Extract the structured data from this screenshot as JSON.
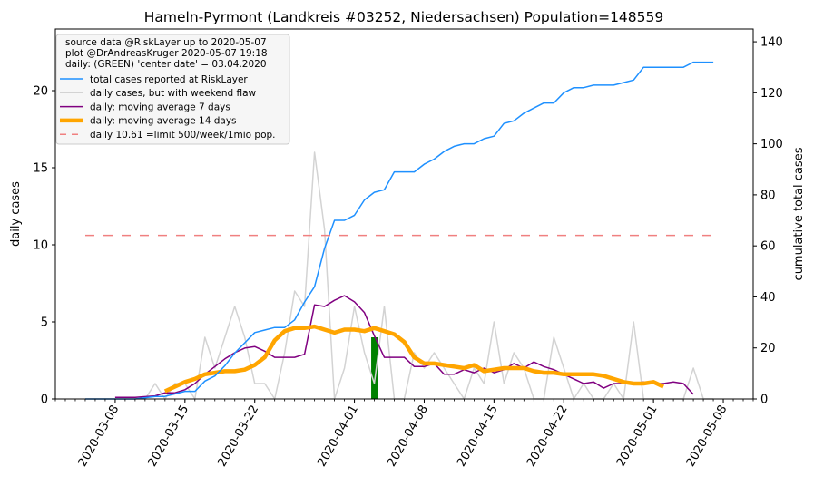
{
  "chart_data": {
    "type": "line",
    "title": "Hameln-Pyrmont (Landkreis #03252, Niedersachsen) Population=148559",
    "ylabel_left": "daily cases",
    "ylabel_right": "cumulative total cases",
    "ylabel_left_color": "#800080",
    "ylabel_right_color": "#1e90ff",
    "ylim_left": [
      0,
      24
    ],
    "ylim_right": [
      0,
      145
    ],
    "yticks_left": [
      0,
      5,
      10,
      15,
      20
    ],
    "yticks_right": [
      0,
      20,
      40,
      60,
      80,
      100,
      120,
      140
    ],
    "xlim": [
      "2020-03-02",
      "2020-05-11"
    ],
    "xticks": [
      "2020-03-08",
      "2020-03-15",
      "2020-03-22",
      "2020-04-01",
      "2020-04-08",
      "2020-04-15",
      "2020-04-22",
      "2020-05-01",
      "2020-05-08"
    ],
    "legend": {
      "placement": "top-left",
      "header": [
        "source data @RiskLayer up to 2020-05-07",
        "plot @DrAndreasKruger 2020-05-07 19:18",
        "daily: (GREEN) 'center date' = 03.04.2020"
      ]
    },
    "center_date": {
      "x": "2020-04-03",
      "value": 4,
      "color": "#008000"
    },
    "series": [
      {
        "name": "total cases reported at RiskLayer",
        "axis": "right",
        "color": "#1e90ff",
        "width": 1.5,
        "style": "solid",
        "x": [
          "2020-03-05",
          "2020-03-08",
          "2020-03-10",
          "2020-03-12",
          "2020-03-13",
          "2020-03-14",
          "2020-03-15",
          "2020-03-16",
          "2020-03-17",
          "2020-03-18",
          "2020-03-19",
          "2020-03-20",
          "2020-03-21",
          "2020-03-22",
          "2020-03-23",
          "2020-03-24",
          "2020-03-25",
          "2020-03-26",
          "2020-03-27",
          "2020-03-28",
          "2020-03-29",
          "2020-03-30",
          "2020-03-31",
          "2020-04-01",
          "2020-04-02",
          "2020-04-03",
          "2020-04-04",
          "2020-04-05",
          "2020-04-06",
          "2020-04-07",
          "2020-04-08",
          "2020-04-09",
          "2020-04-10",
          "2020-04-11",
          "2020-04-12",
          "2020-04-13",
          "2020-04-14",
          "2020-04-15",
          "2020-04-16",
          "2020-04-17",
          "2020-04-18",
          "2020-04-19",
          "2020-04-20",
          "2020-04-21",
          "2020-04-22",
          "2020-04-23",
          "2020-04-24",
          "2020-04-25",
          "2020-04-26",
          "2020-04-27",
          "2020-04-28",
          "2020-04-29",
          "2020-04-30",
          "2020-05-01",
          "2020-05-02",
          "2020-05-03",
          "2020-05-04",
          "2020-05-05",
          "2020-05-06",
          "2020-05-07"
        ],
        "values": [
          0,
          0,
          0,
          1,
          1,
          2,
          3,
          3,
          7,
          9,
          13,
          18,
          22,
          26,
          27,
          28,
          28,
          31,
          38,
          44,
          59,
          70,
          70,
          72,
          78,
          81,
          82,
          89,
          89,
          89,
          92,
          94,
          97,
          99,
          100,
          100,
          102,
          103,
          108,
          109,
          112,
          114,
          116,
          116,
          120,
          122,
          122,
          123,
          123,
          123,
          124,
          125,
          130,
          130,
          130,
          130,
          130,
          132,
          132,
          132
        ]
      },
      {
        "name": "daily cases, but with weekend flaw",
        "axis": "left",
        "color": "#d3d3d3",
        "width": 1.5,
        "style": "solid",
        "x": [
          "2020-03-05",
          "2020-03-06",
          "2020-03-07",
          "2020-03-08",
          "2020-03-09",
          "2020-03-10",
          "2020-03-11",
          "2020-03-12",
          "2020-03-13",
          "2020-03-14",
          "2020-03-15",
          "2020-03-16",
          "2020-03-17",
          "2020-03-18",
          "2020-03-19",
          "2020-03-20",
          "2020-03-21",
          "2020-03-22",
          "2020-03-23",
          "2020-03-24",
          "2020-03-25",
          "2020-03-26",
          "2020-03-27",
          "2020-03-28",
          "2020-03-29",
          "2020-03-30",
          "2020-03-31",
          "2020-04-01",
          "2020-04-02",
          "2020-04-03",
          "2020-04-04",
          "2020-04-05",
          "2020-04-06",
          "2020-04-07",
          "2020-04-08",
          "2020-04-09",
          "2020-04-10",
          "2020-04-11",
          "2020-04-12",
          "2020-04-13",
          "2020-04-14",
          "2020-04-15",
          "2020-04-16",
          "2020-04-17",
          "2020-04-18",
          "2020-04-19",
          "2020-04-20",
          "2020-04-21",
          "2020-04-22",
          "2020-04-23",
          "2020-04-24",
          "2020-04-25",
          "2020-04-26",
          "2020-04-27",
          "2020-04-28",
          "2020-04-29",
          "2020-04-30",
          "2020-05-01",
          "2020-05-02",
          "2020-05-03",
          "2020-05-04",
          "2020-05-05",
          "2020-05-06",
          "2020-05-07"
        ],
        "values": [
          0,
          0,
          0,
          0,
          0,
          0,
          0,
          1,
          0,
          1,
          1,
          0,
          4,
          2,
          4,
          6,
          4,
          1,
          1,
          0,
          3,
          7,
          6,
          16,
          11,
          0,
          2,
          6,
          3,
          1,
          6,
          0,
          0,
          3,
          2,
          3,
          2,
          1,
          0,
          2,
          1,
          5,
          1,
          3,
          2,
          0,
          0,
          4,
          2,
          0,
          1,
          0,
          0,
          1,
          0,
          5,
          0,
          0,
          0,
          0,
          0,
          2,
          0,
          0
        ]
      },
      {
        "name": "daily: moving average 7 days",
        "axis": "left",
        "color": "#800080",
        "width": 1.5,
        "style": "solid",
        "x": [
          "2020-03-08",
          "2020-03-10",
          "2020-03-12",
          "2020-03-13",
          "2020-03-14",
          "2020-03-15",
          "2020-03-16",
          "2020-03-17",
          "2020-03-18",
          "2020-03-19",
          "2020-03-20",
          "2020-03-21",
          "2020-03-22",
          "2020-03-23",
          "2020-03-24",
          "2020-03-25",
          "2020-03-26",
          "2020-03-27",
          "2020-03-28",
          "2020-03-29",
          "2020-03-30",
          "2020-03-31",
          "2020-04-01",
          "2020-04-02",
          "2020-04-03",
          "2020-04-04",
          "2020-04-05",
          "2020-04-06",
          "2020-04-07",
          "2020-04-08",
          "2020-04-09",
          "2020-04-10",
          "2020-04-11",
          "2020-04-12",
          "2020-04-13",
          "2020-04-14",
          "2020-04-15",
          "2020-04-16",
          "2020-04-17",
          "2020-04-18",
          "2020-04-19",
          "2020-04-20",
          "2020-04-21",
          "2020-04-22",
          "2020-04-23",
          "2020-04-24",
          "2020-04-25",
          "2020-04-26",
          "2020-04-27",
          "2020-04-28",
          "2020-04-29",
          "2020-04-30",
          "2020-05-01",
          "2020-05-02",
          "2020-05-03",
          "2020-05-04",
          "2020-05-05"
        ],
        "values": [
          0.1,
          0.1,
          0.2,
          0.4,
          0.4,
          0.6,
          1.0,
          1.6,
          2.1,
          2.6,
          3.0,
          3.3,
          3.4,
          3.1,
          2.7,
          2.7,
          2.7,
          2.9,
          6.1,
          6.0,
          6.4,
          6.7,
          6.3,
          5.6,
          4.1,
          2.7,
          2.7,
          2.7,
          2.1,
          2.1,
          2.3,
          1.6,
          1.6,
          1.9,
          1.7,
          2.0,
          1.7,
          1.9,
          2.3,
          2.0,
          2.4,
          2.1,
          1.9,
          1.6,
          1.3,
          1.0,
          1.1,
          0.7,
          1.0,
          1.0,
          1.0,
          1.1,
          1.0,
          1.0,
          1.1,
          1.0,
          0.3
        ]
      },
      {
        "name": "daily: moving average 14 days",
        "axis": "left",
        "color": "#ffa500",
        "width": 4.5,
        "style": "solid",
        "x": [
          "2020-03-13",
          "2020-03-14",
          "2020-03-15",
          "2020-03-16",
          "2020-03-17",
          "2020-03-18",
          "2020-03-19",
          "2020-03-20",
          "2020-03-21",
          "2020-03-22",
          "2020-03-23",
          "2020-03-24",
          "2020-03-25",
          "2020-03-26",
          "2020-03-27",
          "2020-03-28",
          "2020-03-29",
          "2020-03-30",
          "2020-03-31",
          "2020-04-01",
          "2020-04-02",
          "2020-04-03",
          "2020-04-04",
          "2020-04-05",
          "2020-04-06",
          "2020-04-07",
          "2020-04-08",
          "2020-04-09",
          "2020-04-10",
          "2020-04-11",
          "2020-04-12",
          "2020-04-13",
          "2020-04-14",
          "2020-04-15",
          "2020-04-16",
          "2020-04-17",
          "2020-04-18",
          "2020-04-19",
          "2020-04-20",
          "2020-04-21",
          "2020-04-22",
          "2020-04-23",
          "2020-04-24",
          "2020-04-25",
          "2020-04-26",
          "2020-04-27",
          "2020-04-28",
          "2020-04-29",
          "2020-04-30",
          "2020-05-01",
          "2020-05-02"
        ],
        "values": [
          0.5,
          0.8,
          1.1,
          1.3,
          1.6,
          1.7,
          1.8,
          1.8,
          1.9,
          2.2,
          2.7,
          3.8,
          4.4,
          4.6,
          4.6,
          4.7,
          4.5,
          4.3,
          4.5,
          4.5,
          4.4,
          4.6,
          4.4,
          4.2,
          3.7,
          2.7,
          2.3,
          2.3,
          2.2,
          2.1,
          2.0,
          2.2,
          1.8,
          1.9,
          2.0,
          2.0,
          2.0,
          1.8,
          1.7,
          1.7,
          1.6,
          1.6,
          1.6,
          1.6,
          1.5,
          1.3,
          1.1,
          1.0,
          1.0,
          1.1,
          0.8
        ]
      },
      {
        "name": "daily 10.61 =limit 500/week/1mio pop.",
        "axis": "left",
        "color": "#f08080",
        "width": 1.5,
        "style": "dashed",
        "x": [
          "2020-03-05",
          "2020-05-07"
        ],
        "values": [
          10.61,
          10.61
        ]
      }
    ]
  }
}
